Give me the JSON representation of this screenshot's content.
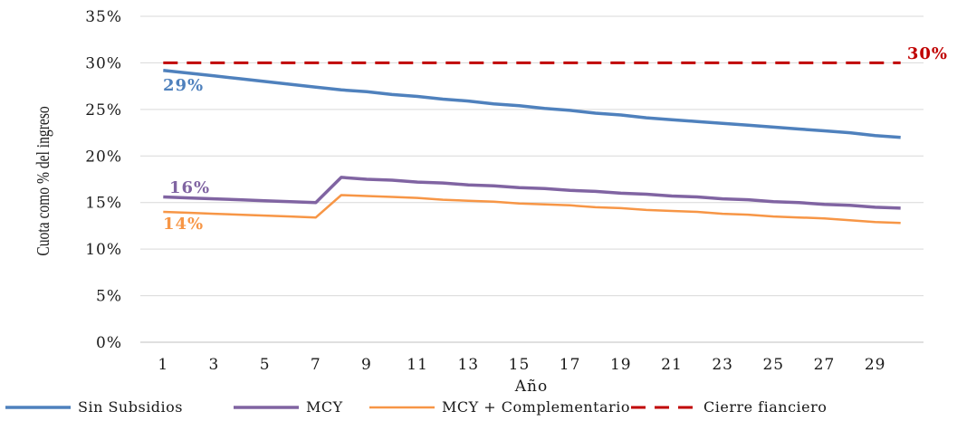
{
  "chart_data": {
    "type": "line",
    "title": "",
    "xlabel": "Año",
    "ylabel": "Cuota como % del ingreso",
    "x": [
      1,
      2,
      3,
      4,
      5,
      6,
      7,
      8,
      9,
      10,
      11,
      12,
      13,
      14,
      15,
      16,
      17,
      18,
      19,
      20,
      21,
      22,
      23,
      24,
      25,
      26,
      27,
      28,
      29,
      30
    ],
    "x_tick_labels": [
      "1",
      "3",
      "5",
      "7",
      "9",
      "11",
      "13",
      "15",
      "17",
      "19",
      "21",
      "23",
      "25",
      "27",
      "29"
    ],
    "y_tick_labels": [
      "0%",
      "5%",
      "10%",
      "15%",
      "20%",
      "25%",
      "30%",
      "35%"
    ],
    "ylim": [
      0,
      35
    ],
    "grid": "horizontal",
    "legend_position": "bottom",
    "series": [
      {
        "name": "Sin Subsidios",
        "color": "#4f81bd",
        "style": "solid",
        "values": [
          29.2,
          28.9,
          28.6,
          28.3,
          28.0,
          27.7,
          27.4,
          27.1,
          26.9,
          26.6,
          26.4,
          26.1,
          25.9,
          25.6,
          25.4,
          25.1,
          24.9,
          24.6,
          24.4,
          24.1,
          23.9,
          23.7,
          23.5,
          23.3,
          23.1,
          22.9,
          22.7,
          22.5,
          22.2,
          22.0
        ]
      },
      {
        "name": "MCY",
        "color": "#8064a2",
        "style": "solid",
        "values": [
          15.6,
          15.5,
          15.4,
          15.3,
          15.2,
          15.1,
          15.0,
          17.7,
          17.5,
          17.4,
          17.2,
          17.1,
          16.9,
          16.8,
          16.6,
          16.5,
          16.3,
          16.2,
          16.0,
          15.9,
          15.7,
          15.6,
          15.4,
          15.3,
          15.1,
          15.0,
          14.8,
          14.7,
          14.5,
          14.4
        ]
      },
      {
        "name": "MCY + Complementario",
        "color": "#f79646",
        "style": "solid",
        "values": [
          14.0,
          13.9,
          13.8,
          13.7,
          13.6,
          13.5,
          13.4,
          15.8,
          15.7,
          15.6,
          15.5,
          15.3,
          15.2,
          15.1,
          14.9,
          14.8,
          14.7,
          14.5,
          14.4,
          14.2,
          14.1,
          14.0,
          13.8,
          13.7,
          13.5,
          13.4,
          13.3,
          13.1,
          12.9,
          12.8
        ]
      },
      {
        "name": "Cierre fianciero",
        "color": "#c00000",
        "style": "dashed",
        "values": [
          30,
          30,
          30,
          30,
          30,
          30,
          30,
          30,
          30,
          30,
          30,
          30,
          30,
          30,
          30,
          30,
          30,
          30,
          30,
          30,
          30,
          30,
          30,
          30,
          30,
          30,
          30,
          30,
          30,
          30
        ]
      }
    ],
    "annotations": [
      {
        "text": "29%",
        "series": "Sin Subsidios",
        "color": "#4f81bd"
      },
      {
        "text": "16%",
        "series": "MCY",
        "color": "#8064a2"
      },
      {
        "text": "14%",
        "series": "MCY + Complementario",
        "color": "#f79646"
      },
      {
        "text": "30%",
        "series": "Cierre fianciero",
        "color": "#c00000"
      }
    ]
  }
}
